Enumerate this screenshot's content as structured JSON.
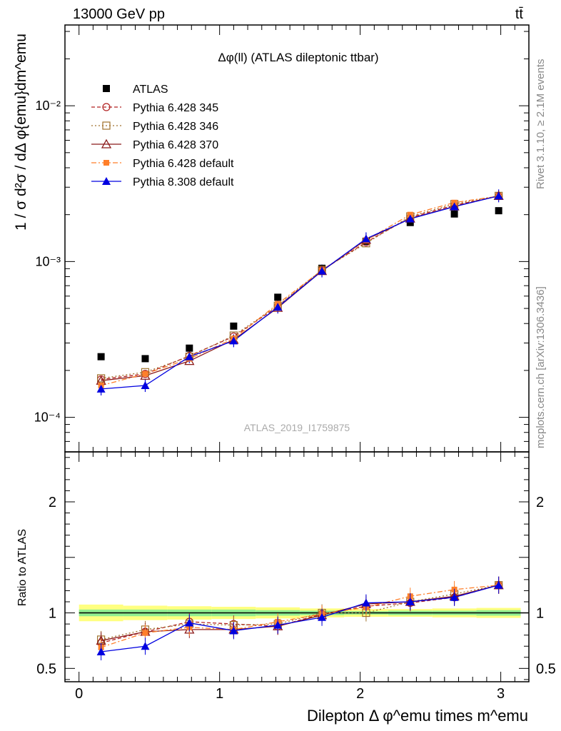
{
  "header": {
    "left": "13000 GeV pp",
    "right": "tt̄"
  },
  "side_labels": {
    "rivet": "Rivet 3.1.10, ≥ 2.1M events",
    "mcplots": "mcplots.cern.ch [arXiv:1306.3436]"
  },
  "watermark": "ATLAS_2019_I1759875",
  "colors": {
    "ATLAS": "#000000",
    "Pythia 6.428 345": "#b22222",
    "Pythia 6.428 346": "#a0722d",
    "Pythia 6.428 370": "#8b1a1a",
    "Pythia 6.428 default": "#ff7f2a",
    "Pythia 8.308 default": "#0000e0",
    "band_inner": "#90ee90",
    "band_outer": "#ffff80"
  },
  "chart_data": [
    {
      "type": "line",
      "title": "Δφ(ll) (ATLAS dileptonic ttbar)",
      "ylabel": "1 / σ d²σ / dΔ φ{emu}dm^emu",
      "yscale": "log",
      "ylim": [
        6e-05,
        0.033
      ],
      "xlim": [
        -0.1,
        3.2
      ],
      "yticks": [
        "10⁻⁴",
        "10⁻³",
        "10⁻²"
      ],
      "legend_position": "top-left",
      "x": [
        0.157,
        0.471,
        0.785,
        1.1,
        1.414,
        1.728,
        2.042,
        2.356,
        2.67,
        2.985
      ],
      "series": [
        {
          "name": "ATLAS",
          "style": "data",
          "values": [
            0.000245,
            0.000238,
            0.000278,
            0.000385,
            0.00059,
            0.000905,
            0.00135,
            0.00178,
            0.00202,
            0.00212
          ]
        },
        {
          "name": "Pythia 6.428 345",
          "style": "dashed-open-circle",
          "values": [
            0.000175,
            0.00019,
            0.000248,
            0.00033,
            0.000515,
            0.00088,
            0.00133,
            0.00192,
            0.0023,
            0.00263
          ]
        },
        {
          "name": "Pythia 6.428 346",
          "style": "dotted-open-square",
          "values": [
            0.000178,
            0.000195,
            0.000245,
            0.000335,
            0.00052,
            0.000885,
            0.00131,
            0.00195,
            0.00234,
            0.00264
          ]
        },
        {
          "name": "Pythia 6.428 370",
          "style": "solid-open-triangle",
          "values": [
            0.000172,
            0.000185,
            0.00023,
            0.000315,
            0.000505,
            0.00087,
            0.00138,
            0.00189,
            0.00226,
            0.00264
          ]
        },
        {
          "name": "Pythia 6.428 default",
          "style": "dashdot-filled-square",
          "values": [
            0.00016,
            0.00019,
            0.000238,
            0.00032,
            0.000535,
            0.00088,
            0.00137,
            0.002,
            0.00239,
            0.00263
          ]
        },
        {
          "name": "Pythia 8.308 default",
          "style": "solid-filled-triangle",
          "values": [
            0.000152,
            0.00016,
            0.000245,
            0.00031,
            0.00051,
            0.00087,
            0.0014,
            0.00188,
            0.00225,
            0.00264
          ]
        }
      ]
    },
    {
      "type": "line",
      "ylabel": "Ratio to ATLAS",
      "xlabel": "Dilepton Δ φ^emu times m^emu",
      "ylim": [
        0.38,
        2.45
      ],
      "xlim": [
        -0.1,
        3.2
      ],
      "yticks": [
        "0.5",
        "1",
        "2"
      ],
      "xticks": [
        "0",
        "1",
        "2",
        "3"
      ],
      "x": [
        0.157,
        0.471,
        0.785,
        1.1,
        1.414,
        1.728,
        2.042,
        2.356,
        2.67,
        2.985
      ],
      "band_edges": [
        0.0,
        0.314,
        0.628,
        0.942,
        1.257,
        1.571,
        1.885,
        2.199,
        2.513,
        2.827,
        3.142
      ],
      "band_inner": [
        0.03,
        0.03,
        0.03,
        0.03,
        0.025,
        0.02,
        0.015,
        0.02,
        0.02,
        0.025
      ],
      "band_outer": [
        0.075,
        0.065,
        0.06,
        0.055,
        0.05,
        0.04,
        0.035,
        0.035,
        0.04,
        0.045
      ],
      "series": [
        {
          "name": "Pythia 6.428 345",
          "values": [
            0.73,
            0.83,
            0.92,
            0.9,
            0.88,
            0.99,
            1.06,
            1.09,
            1.14,
            1.25
          ]
        },
        {
          "name": "Pythia 6.428 346",
          "values": [
            0.76,
            0.85,
            0.9,
            0.89,
            0.9,
            1.0,
            1.0,
            1.1,
            1.17,
            1.25
          ]
        },
        {
          "name": "Pythia 6.428 370",
          "values": [
            0.75,
            0.83,
            0.85,
            0.85,
            0.88,
            0.98,
            1.08,
            1.1,
            1.15,
            1.25
          ]
        },
        {
          "name": "Pythia 6.428 default",
          "values": [
            0.69,
            0.82,
            0.87,
            0.85,
            0.92,
            0.99,
            1.05,
            1.15,
            1.21,
            1.25
          ]
        },
        {
          "name": "Pythia 8.308 default",
          "values": [
            0.65,
            0.7,
            0.91,
            0.84,
            0.89,
            0.96,
            1.09,
            1.1,
            1.14,
            1.25
          ]
        }
      ]
    }
  ]
}
